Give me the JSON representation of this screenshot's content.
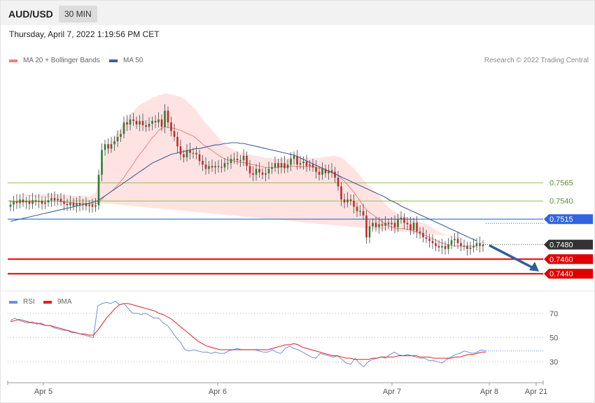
{
  "header": {
    "symbol": "AUD/USD",
    "timeframe": "30 MIN"
  },
  "timestamp": "Thursday, April 7, 2022 1:19:56 PM CET",
  "legend": {
    "ma20": {
      "label": "MA 20 + Bollinger Bands",
      "color": "#f08080"
    },
    "ma50": {
      "label": "MA 50",
      "color": "#3c5fa0"
    },
    "rsi": {
      "label": "RSI",
      "color": "#6f8fdc"
    },
    "rsi_ma": {
      "label": "9MA",
      "color": "#e02020"
    }
  },
  "credit": "Research © 2022 Trading Central",
  "colors": {
    "up": "#2e7d32",
    "down": "#c62828",
    "resistance": "#8fbf4f",
    "pivot": "#2f66e0",
    "support": "#e00000",
    "last": "#333333",
    "arrow": "#2f5f9a"
  },
  "chart_data": [
    {
      "type": "candlestick",
      "title": "",
      "x_ticks": [
        "Apr 5",
        "Apr 6",
        "Apr 7",
        "Apr 8",
        "Apr 21"
      ],
      "ylim": [
        0.742,
        0.772
      ],
      "levels": [
        {
          "value": 0.7565,
          "label": "0.7565",
          "kind": "resistance"
        },
        {
          "value": 0.754,
          "label": "0.7540",
          "kind": "resistance"
        },
        {
          "value": 0.7515,
          "label": "0.7515",
          "kind": "pivot"
        },
        {
          "value": 0.748,
          "label": "0.7480",
          "kind": "last"
        },
        {
          "value": 0.746,
          "label": "0.7460",
          "kind": "support"
        },
        {
          "value": 0.744,
          "label": "0.7440",
          "kind": "support"
        }
      ],
      "projection": {
        "from": 0.7479,
        "to": 0.7443
      },
      "close": [
        0.7535,
        0.7539,
        0.7537,
        0.7542,
        0.7538,
        0.754,
        0.7536,
        0.7541,
        0.7539,
        0.754,
        0.7536,
        0.7538,
        0.7541,
        0.7544,
        0.7541,
        0.7543,
        0.7539,
        0.7536,
        0.7534,
        0.7538,
        0.7533,
        0.7537,
        0.7534,
        0.7536,
        0.7533,
        0.7535,
        0.7532,
        0.7534,
        0.7576,
        0.761,
        0.7618,
        0.7612,
        0.7618,
        0.7622,
        0.7628,
        0.7632,
        0.7648,
        0.7645,
        0.7652,
        0.765,
        0.7645,
        0.765,
        0.7644,
        0.7642,
        0.7646,
        0.765,
        0.7648,
        0.7652,
        0.7642,
        0.7664,
        0.7648,
        0.7636,
        0.7628,
        0.7615,
        0.7604,
        0.76,
        0.761,
        0.7606,
        0.7606,
        0.7604,
        0.7595,
        0.759,
        0.7584,
        0.7588,
        0.7586,
        0.7588,
        0.7587,
        0.7586,
        0.7592,
        0.7592,
        0.7598,
        0.7598,
        0.7596,
        0.7596,
        0.7602,
        0.7588,
        0.7578,
        0.7576,
        0.7584,
        0.7579,
        0.7576,
        0.7578,
        0.7584,
        0.7586,
        0.7592,
        0.7586,
        0.7592,
        0.7585,
        0.759,
        0.7598,
        0.7602,
        0.759,
        0.7592,
        0.7594,
        0.7588,
        0.759,
        0.7586,
        0.758,
        0.7576,
        0.7584,
        0.7578,
        0.7582,
        0.758,
        0.7572,
        0.756,
        0.7542,
        0.7538,
        0.7542,
        0.754,
        0.7532,
        0.7526,
        0.7526,
        0.752,
        0.749,
        0.7505,
        0.751,
        0.7504,
        0.7508,
        0.7506,
        0.751,
        0.7508,
        0.751,
        0.7504,
        0.7515,
        0.7517,
        0.751,
        0.7508,
        0.75,
        0.751,
        0.7498,
        0.7496,
        0.749,
        0.7488,
        0.7485,
        0.7482,
        0.7478,
        0.7476,
        0.7478,
        0.7474,
        0.748,
        0.7486,
        0.7488,
        0.7482,
        0.7478,
        0.7478,
        0.7474,
        0.7476,
        0.7478,
        0.7482,
        0.7478,
        0.748
      ],
      "ma20": [
        0.7539,
        0.7539,
        0.7539,
        0.7539,
        0.7539,
        0.7539,
        0.7539,
        0.7539,
        0.7539,
        0.7539,
        0.7539,
        0.7539,
        0.754,
        0.754,
        0.754,
        0.754,
        0.7539,
        0.7539,
        0.7538,
        0.7538,
        0.7537,
        0.7537,
        0.7537,
        0.7537,
        0.7537,
        0.7536,
        0.7536,
        0.7536,
        0.7538,
        0.7542,
        0.7547,
        0.755,
        0.7553,
        0.7557,
        0.7562,
        0.7567,
        0.7572,
        0.7579,
        0.7585,
        0.7591,
        0.7598,
        0.7604,
        0.7609,
        0.7615,
        0.7621,
        0.7627,
        0.7631,
        0.7637,
        0.764,
        0.7642,
        0.7641,
        0.764,
        0.764,
        0.7638,
        0.7637,
        0.7635,
        0.7633,
        0.7631,
        0.7629,
        0.7626,
        0.7622,
        0.7618,
        0.7615,
        0.7612,
        0.7609,
        0.7606,
        0.7603,
        0.76,
        0.7598,
        0.7596,
        0.7596,
        0.7595,
        0.7594,
        0.7593,
        0.7593,
        0.7592,
        0.7591,
        0.759,
        0.7589,
        0.7588,
        0.7587,
        0.7586,
        0.7586,
        0.7586,
        0.7586,
        0.7586,
        0.7587,
        0.7587,
        0.7587,
        0.7588,
        0.7588,
        0.7587,
        0.7587,
        0.7587,
        0.7587,
        0.7587,
        0.7587,
        0.7586,
        0.7585,
        0.7584,
        0.7583,
        0.7581,
        0.758,
        0.7578,
        0.7575,
        0.7571,
        0.7567,
        0.7562,
        0.7557,
        0.7552,
        0.7546,
        0.754,
        0.7533,
        0.7528,
        0.7524,
        0.7521,
        0.7518,
        0.7515,
        0.7511,
        0.7508,
        0.7506,
        0.7504,
        0.7503,
        0.7502,
        0.7502,
        0.7502,
        0.7501,
        0.75,
        0.7499,
        0.7497,
        0.7495,
        0.7494,
        0.7492,
        0.749,
        0.7488,
        0.7486,
        0.7484,
        0.7482,
        0.7481,
        0.748,
        0.7479,
        0.7478,
        0.7478,
        0.7478,
        0.7478,
        0.7478,
        0.7478,
        0.7478,
        0.7478
      ],
      "ma50": [
        0.7512,
        0.7513,
        0.7514,
        0.7515,
        0.7516,
        0.7517,
        0.7518,
        0.7519,
        0.752,
        0.7521,
        0.7522,
        0.7523,
        0.7524,
        0.7525,
        0.7526,
        0.7527,
        0.7528,
        0.7529,
        0.753,
        0.7531,
        0.7532,
        0.7533,
        0.7534,
        0.7535,
        0.7536,
        0.7537,
        0.7538,
        0.7539,
        0.7541,
        0.7544,
        0.7547,
        0.755,
        0.7553,
        0.7556,
        0.7559,
        0.7562,
        0.7565,
        0.7568,
        0.7571,
        0.7574,
        0.7577,
        0.758,
        0.7583,
        0.7586,
        0.7589,
        0.7592,
        0.7594,
        0.7596,
        0.7598,
        0.76,
        0.7602,
        0.7604,
        0.7605,
        0.7606,
        0.7607,
        0.7608,
        0.7609,
        0.761,
        0.7611,
        0.7612,
        0.7612,
        0.7613,
        0.7614,
        0.7615,
        0.7616,
        0.7617,
        0.7617,
        0.7618,
        0.7619,
        0.7619,
        0.762,
        0.762,
        0.762,
        0.7619,
        0.7619,
        0.7618,
        0.7617,
        0.7616,
        0.7615,
        0.7614,
        0.7613,
        0.7612,
        0.7611,
        0.761,
        0.7609,
        0.7608,
        0.7607,
        0.7606,
        0.7605,
        0.7604,
        0.7603,
        0.7601,
        0.7599,
        0.7597,
        0.7595,
        0.7593,
        0.7591,
        0.7589,
        0.7587,
        0.7585,
        0.7583,
        0.7581,
        0.7579,
        0.7577,
        0.7575,
        0.7573,
        0.7571,
        0.7569,
        0.7567,
        0.7565,
        0.7563,
        0.7561,
        0.7559,
        0.7557,
        0.7555,
        0.7553,
        0.7551,
        0.7549,
        0.7547,
        0.7545,
        0.7542,
        0.754,
        0.7538,
        0.7536,
        0.7533,
        0.7531,
        0.7529,
        0.7527,
        0.7525,
        0.7523,
        0.7521,
        0.7519,
        0.7517,
        0.7515,
        0.7513,
        0.7511,
        0.7509,
        0.7507,
        0.7505,
        0.7503,
        0.7501,
        0.7499,
        0.7497,
        0.7495,
        0.7493,
        0.7491,
        0.7489,
        0.7487,
        0.7485
      ],
      "band_width": [
        0.001,
        0.001,
        0.001,
        0.001,
        0.001,
        0.001,
        0.001,
        0.001,
        0.001,
        0.001,
        0.001,
        0.001,
        0.001,
        0.001,
        0.001,
        0.001,
        0.001,
        0.001,
        0.001,
        0.001,
        0.001,
        0.001,
        0.001,
        0.001,
        0.001,
        0.001,
        0.0012,
        0.0016,
        0.003,
        0.0045,
        0.0058,
        0.0065,
        0.007,
        0.0072,
        0.0073,
        0.0074,
        0.0075,
        0.0075,
        0.0074,
        0.0072,
        0.007,
        0.0068,
        0.0065,
        0.0062,
        0.0058,
        0.0055,
        0.0052,
        0.0048,
        0.0046,
        0.0046,
        0.0046,
        0.0046,
        0.0046,
        0.0046,
        0.0046,
        0.0046,
        0.0044,
        0.0042,
        0.004,
        0.0038,
        0.0036,
        0.0034,
        0.0032,
        0.003,
        0.0028,
        0.0026,
        0.0024,
        0.0022,
        0.002,
        0.0018,
        0.0016,
        0.0015,
        0.0014,
        0.0013,
        0.0013,
        0.0013,
        0.0013,
        0.0013,
        0.0013,
        0.0013,
        0.0013,
        0.0013,
        0.0013,
        0.0013,
        0.0012,
        0.0012,
        0.0012,
        0.0012,
        0.0012,
        0.0012,
        0.0012,
        0.0012,
        0.0012,
        0.0012,
        0.0012,
        0.0012,
        0.0012,
        0.0013,
        0.0014,
        0.0016,
        0.0018,
        0.002,
        0.0022,
        0.0024,
        0.0026,
        0.0028,
        0.003,
        0.0031,
        0.0032,
        0.0033,
        0.0034,
        0.0035,
        0.0036,
        0.0036,
        0.0036,
        0.0035,
        0.0034,
        0.0032,
        0.003,
        0.0028,
        0.0026,
        0.0024,
        0.0022,
        0.002,
        0.0018,
        0.0017,
        0.0016,
        0.0016,
        0.0016,
        0.0016,
        0.0016,
        0.0016,
        0.0016,
        0.0015,
        0.0015,
        0.0014,
        0.0014,
        0.0013,
        0.0013,
        0.0012,
        0.0012,
        0.0012,
        0.0011,
        0.0011,
        0.0011,
        0.0011,
        0.0011,
        0.001,
        0.001
      ]
    },
    {
      "type": "line",
      "title": "",
      "ylim": [
        14,
        86
      ],
      "y_ticks": [
        "70",
        "50",
        "30"
      ],
      "y_tick_values": [
        70,
        50,
        30
      ],
      "last_value": 39,
      "series": [
        {
          "name": "RSI",
          "values": [
            64,
            66,
            64,
            63,
            62,
            63,
            61,
            62,
            60,
            60,
            58,
            57,
            56,
            56,
            54,
            54,
            53,
            52,
            51,
            50,
            76,
            78,
            79,
            78,
            80,
            77,
            78,
            74,
            70,
            70,
            69,
            70,
            68,
            66,
            66,
            62,
            60,
            55,
            50,
            46,
            40,
            39,
            40,
            39,
            38,
            38,
            37,
            38,
            37,
            37,
            39,
            40,
            41,
            40,
            40,
            40,
            40,
            39,
            38,
            38,
            40,
            38,
            37,
            41,
            43,
            41,
            40,
            38,
            36,
            34,
            33,
            37,
            36,
            35,
            34,
            35,
            32,
            29,
            28,
            33,
            29,
            26,
            30,
            32,
            33,
            34,
            33,
            36,
            38,
            36,
            35,
            36,
            35,
            34,
            33,
            33,
            31,
            31,
            30,
            29,
            32,
            34,
            36,
            37,
            39,
            38,
            37,
            38,
            40,
            39
          ]
        },
        {
          "name": "9MA",
          "values": [
            63,
            64,
            65,
            64,
            63,
            62,
            62,
            61,
            60,
            60,
            59,
            58,
            57,
            56,
            55,
            54,
            53,
            53,
            52,
            52,
            56,
            61,
            66,
            70,
            74,
            77,
            78,
            78,
            77,
            76,
            75,
            74,
            73,
            72,
            70,
            69,
            67,
            65,
            62,
            59,
            56,
            53,
            50,
            47,
            45,
            43,
            42,
            41,
            40,
            40,
            40,
            40,
            40,
            40,
            40,
            40,
            40,
            40,
            40,
            40,
            41,
            42,
            43,
            44,
            44,
            45,
            44,
            42,
            41,
            40,
            39,
            38,
            37,
            36,
            35,
            35,
            34,
            33,
            33,
            32,
            32,
            32,
            32,
            33,
            33,
            34,
            34,
            34,
            34,
            35,
            35,
            35,
            35,
            35,
            34,
            34,
            34,
            33,
            33,
            33,
            33,
            33,
            34,
            34,
            35,
            36,
            36,
            37,
            38,
            38
          ]
        }
      ]
    }
  ]
}
